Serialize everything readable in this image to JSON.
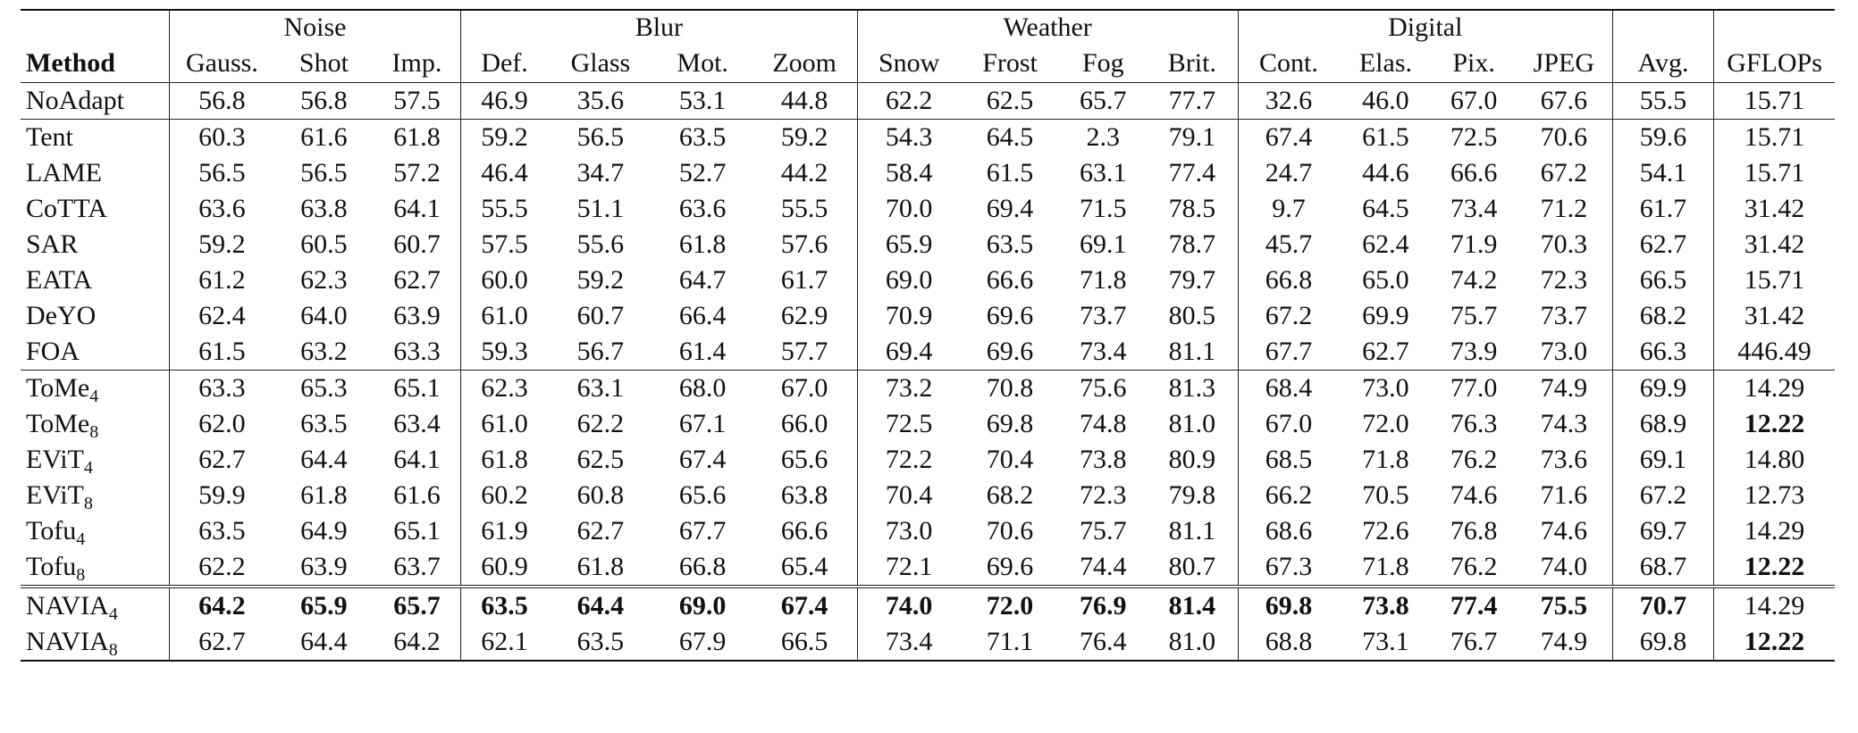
{
  "header": {
    "groups": [
      "Noise",
      "Blur",
      "Weather",
      "Digital"
    ],
    "method_label": "Method",
    "columns": [
      "Gauss.",
      "Shot",
      "Imp.",
      "Def.",
      "Glass",
      "Mot.",
      "Zoom",
      "Snow",
      "Frost",
      "Fog",
      "Brit.",
      "Cont.",
      "Elas.",
      "Pix.",
      "JPEG",
      "Avg.",
      "GFLOPs"
    ]
  },
  "sections": [
    [
      {
        "method": "NoAdapt",
        "sub": "",
        "values": [
          "56.8",
          "56.8",
          "57.5",
          "46.9",
          "35.6",
          "53.1",
          "44.8",
          "62.2",
          "62.5",
          "65.7",
          "77.7",
          "32.6",
          "46.0",
          "67.0",
          "67.6",
          "55.5",
          "15.71"
        ],
        "bold": []
      }
    ],
    [
      {
        "method": "Tent",
        "sub": "",
        "values": [
          "60.3",
          "61.6",
          "61.8",
          "59.2",
          "56.5",
          "63.5",
          "59.2",
          "54.3",
          "64.5",
          "2.3",
          "79.1",
          "67.4",
          "61.5",
          "72.5",
          "70.6",
          "59.6",
          "15.71"
        ],
        "bold": []
      },
      {
        "method": "LAME",
        "sub": "",
        "values": [
          "56.5",
          "56.5",
          "57.2",
          "46.4",
          "34.7",
          "52.7",
          "44.2",
          "58.4",
          "61.5",
          "63.1",
          "77.4",
          "24.7",
          "44.6",
          "66.6",
          "67.2",
          "54.1",
          "15.71"
        ],
        "bold": []
      },
      {
        "method": "CoTTA",
        "sub": "",
        "values": [
          "63.6",
          "63.8",
          "64.1",
          "55.5",
          "51.1",
          "63.6",
          "55.5",
          "70.0",
          "69.4",
          "71.5",
          "78.5",
          "9.7",
          "64.5",
          "73.4",
          "71.2",
          "61.7",
          "31.42"
        ],
        "bold": []
      },
      {
        "method": "SAR",
        "sub": "",
        "values": [
          "59.2",
          "60.5",
          "60.7",
          "57.5",
          "55.6",
          "61.8",
          "57.6",
          "65.9",
          "63.5",
          "69.1",
          "78.7",
          "45.7",
          "62.4",
          "71.9",
          "70.3",
          "62.7",
          "31.42"
        ],
        "bold": []
      },
      {
        "method": "EATA",
        "sub": "",
        "values": [
          "61.2",
          "62.3",
          "62.7",
          "60.0",
          "59.2",
          "64.7",
          "61.7",
          "69.0",
          "66.6",
          "71.8",
          "79.7",
          "66.8",
          "65.0",
          "74.2",
          "72.3",
          "66.5",
          "15.71"
        ],
        "bold": []
      },
      {
        "method": "DeYO",
        "sub": "",
        "values": [
          "62.4",
          "64.0",
          "63.9",
          "61.0",
          "60.7",
          "66.4",
          "62.9",
          "70.9",
          "69.6",
          "73.7",
          "80.5",
          "67.2",
          "69.9",
          "75.7",
          "73.7",
          "68.2",
          "31.42"
        ],
        "bold": []
      },
      {
        "method": "FOA",
        "sub": "",
        "values": [
          "61.5",
          "63.2",
          "63.3",
          "59.3",
          "56.7",
          "61.4",
          "57.7",
          "69.4",
          "69.6",
          "73.4",
          "81.1",
          "67.7",
          "62.7",
          "73.9",
          "73.0",
          "66.3",
          "446.49"
        ],
        "bold": []
      }
    ],
    [
      {
        "method": "ToMe",
        "sub": "4",
        "values": [
          "63.3",
          "65.3",
          "65.1",
          "62.3",
          "63.1",
          "68.0",
          "67.0",
          "73.2",
          "70.8",
          "75.6",
          "81.3",
          "68.4",
          "73.0",
          "77.0",
          "74.9",
          "69.9",
          "14.29"
        ],
        "bold": []
      },
      {
        "method": "ToMe",
        "sub": "8",
        "values": [
          "62.0",
          "63.5",
          "63.4",
          "61.0",
          "62.2",
          "67.1",
          "66.0",
          "72.5",
          "69.8",
          "74.8",
          "81.0",
          "67.0",
          "72.0",
          "76.3",
          "74.3",
          "68.9",
          "12.22"
        ],
        "bold": [
          16
        ]
      },
      {
        "method": "EViT",
        "sub": "4",
        "values": [
          "62.7",
          "64.4",
          "64.1",
          "61.8",
          "62.5",
          "67.4",
          "65.6",
          "72.2",
          "70.4",
          "73.8",
          "80.9",
          "68.5",
          "71.8",
          "76.2",
          "73.6",
          "69.1",
          "14.80"
        ],
        "bold": []
      },
      {
        "method": "EViT",
        "sub": "8",
        "values": [
          "59.9",
          "61.8",
          "61.6",
          "60.2",
          "60.8",
          "65.6",
          "63.8",
          "70.4",
          "68.2",
          "72.3",
          "79.8",
          "66.2",
          "70.5",
          "74.6",
          "71.6",
          "67.2",
          "12.73"
        ],
        "bold": []
      },
      {
        "method": "Tofu",
        "sub": "4",
        "values": [
          "63.5",
          "64.9",
          "65.1",
          "61.9",
          "62.7",
          "67.7",
          "66.6",
          "73.0",
          "70.6",
          "75.7",
          "81.1",
          "68.6",
          "72.6",
          "76.8",
          "74.6",
          "69.7",
          "14.29"
        ],
        "bold": []
      },
      {
        "method": "Tofu",
        "sub": "8",
        "values": [
          "62.2",
          "63.9",
          "63.7",
          "60.9",
          "61.8",
          "66.8",
          "65.4",
          "72.1",
          "69.6",
          "74.4",
          "80.7",
          "67.3",
          "71.8",
          "76.2",
          "74.0",
          "68.7",
          "12.22"
        ],
        "bold": [
          16
        ]
      }
    ],
    [
      {
        "method": "NAVIA",
        "sub": "4",
        "values": [
          "64.2",
          "65.9",
          "65.7",
          "63.5",
          "64.4",
          "69.0",
          "67.4",
          "74.0",
          "72.0",
          "76.9",
          "81.4",
          "69.8",
          "73.8",
          "77.4",
          "75.5",
          "70.7",
          "14.29"
        ],
        "bold": [
          0,
          1,
          2,
          3,
          4,
          5,
          6,
          7,
          8,
          9,
          10,
          11,
          12,
          13,
          14,
          15
        ]
      },
      {
        "method": "NAVIA",
        "sub": "8",
        "values": [
          "62.7",
          "64.4",
          "64.2",
          "62.1",
          "63.5",
          "67.9",
          "66.5",
          "73.4",
          "71.1",
          "76.4",
          "81.0",
          "68.8",
          "73.1",
          "76.7",
          "74.9",
          "69.8",
          "12.22"
        ],
        "bold": [
          16
        ]
      }
    ]
  ]
}
